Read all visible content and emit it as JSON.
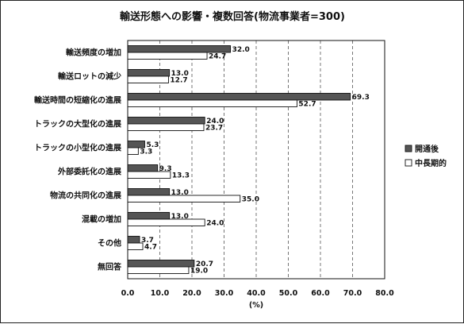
{
  "chart_data": {
    "type": "bar",
    "orientation": "horizontal",
    "title": "輸送形態への影響・複数回答(物流事業者=300)",
    "xlabel": "(%)",
    "ylabel": "",
    "xlim": [
      0,
      80
    ],
    "xticks": [
      "0.0",
      "10.0",
      "20.0",
      "30.0",
      "40.0",
      "50.0",
      "60.0",
      "70.0",
      "80.0"
    ],
    "grid": "vertical dashed",
    "legend_position": "right",
    "categories": [
      "輸送頻度の増加",
      "輸送ロットの減少",
      "輸送時間の短縮化の進展",
      "トラックの大型化の進展",
      "トラックの小型化の進展",
      "外部委託化の進展",
      "物流の共同化の進展",
      "混載の増加",
      "その他",
      "無回答"
    ],
    "series": [
      {
        "name": "開通後",
        "color": "#555555",
        "values": [
          32.0,
          13.0,
          69.3,
          24.0,
          5.3,
          9.3,
          13.0,
          13.0,
          3.7,
          20.7
        ],
        "labels": [
          "32.0",
          "13.0",
          "69.3",
          "24.0",
          "5.3",
          "9.3",
          "13.0",
          "13.0",
          "3.7",
          "20.7"
        ]
      },
      {
        "name": "中長期的",
        "color": "#ffffff",
        "values": [
          24.7,
          12.7,
          52.7,
          23.7,
          3.3,
          13.3,
          35.0,
          24.0,
          4.7,
          19.0
        ],
        "labels": [
          "24.7",
          "12.7",
          "52.7",
          "23.7",
          "3.3",
          "13.3",
          "35.0",
          "24.0",
          "4.7",
          "19.0"
        ]
      }
    ]
  }
}
